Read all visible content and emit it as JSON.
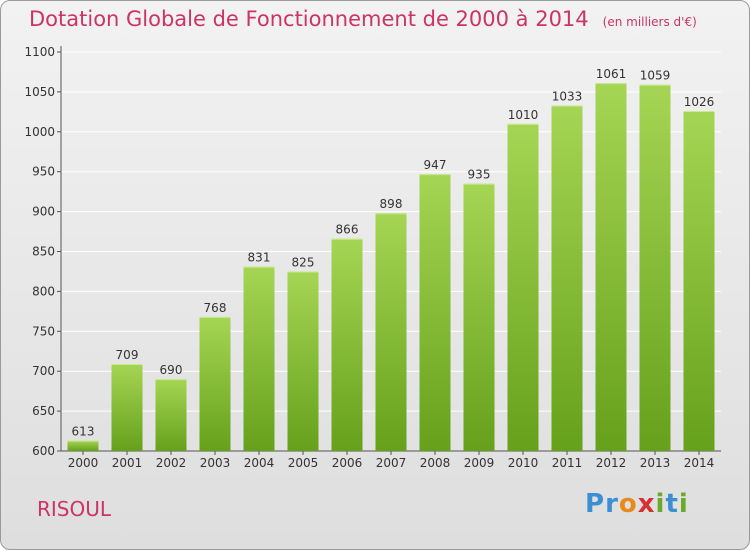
{
  "header": {
    "title": "Dotation Globale de Fonctionnement de 2000 à 2014",
    "unit": "(en milliers d'€)"
  },
  "footer": {
    "commune": "RISOUL",
    "logo": {
      "parts": [
        "P",
        "r",
        "o",
        "x",
        "i",
        "t",
        "i"
      ],
      "colors": [
        "#3b8fd4",
        "#3b8fd4",
        "#e88a1a",
        "#d63030",
        "#6aaa2a",
        "#3b8fd4",
        "#6aaa2a"
      ]
    }
  },
  "chart_data": {
    "type": "bar",
    "categories": [
      "2000",
      "2001",
      "2002",
      "2003",
      "2004",
      "2005",
      "2006",
      "2007",
      "2008",
      "2009",
      "2010",
      "2011",
      "2012",
      "2013",
      "2014"
    ],
    "values": [
      613,
      709,
      690,
      768,
      831,
      825,
      866,
      898,
      947,
      935,
      1010,
      1033,
      1061,
      1059,
      1026
    ],
    "ylim": [
      600,
      1100
    ],
    "yticks": [
      600,
      650,
      700,
      750,
      800,
      850,
      900,
      950,
      1000,
      1050,
      1100
    ],
    "grid": true,
    "colors": {
      "bar_light": "#a5d554",
      "bar_dark": "#66a11b",
      "grid": "#ffffff",
      "label": "#333333"
    }
  }
}
